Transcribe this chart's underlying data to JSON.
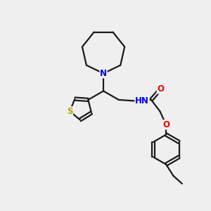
{
  "bg_color": "#efefef",
  "bond_color": "#1a1a1a",
  "N_color": "#0000ee",
  "S_color": "#aaaa00",
  "O_color": "#ee0000",
  "line_width": 1.6,
  "font_size": 8.5,
  "figsize": [
    3.0,
    3.0
  ],
  "dpi": 100,
  "xlim": [
    0,
    10
  ],
  "ylim": [
    0,
    10
  ]
}
